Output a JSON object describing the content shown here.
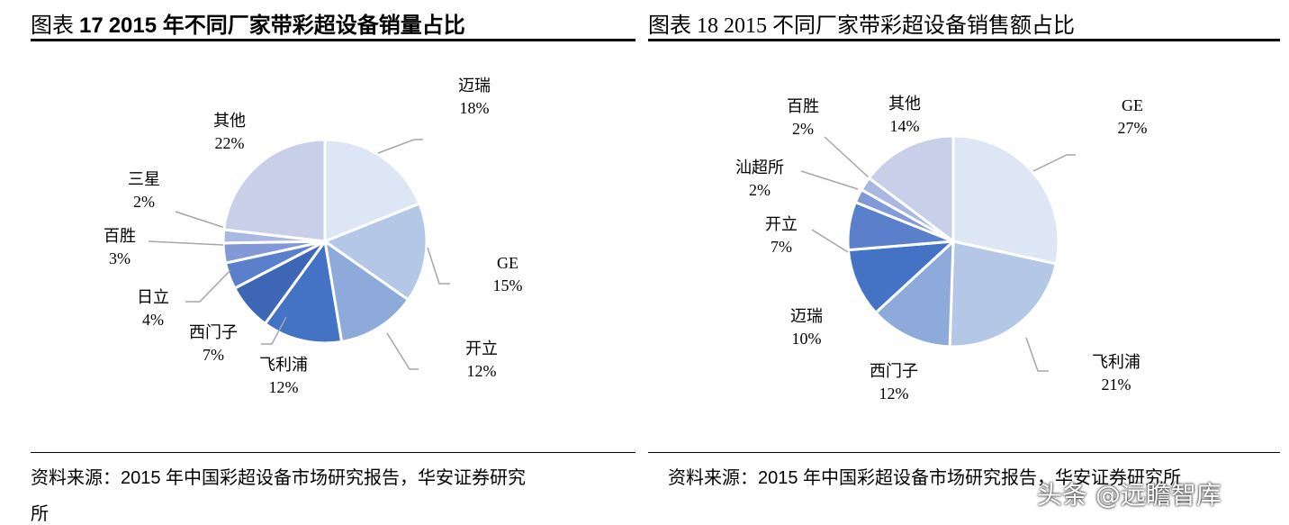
{
  "chart_data": [
    {
      "type": "pie",
      "title_prefix": "图表 ",
      "title_num": "17",
      "title": "2015 年不同厂家带彩超设备销量占比",
      "slices": [
        {
          "label": "迈瑞",
          "value": 18,
          "pct": "18%",
          "color": "#dce6f4"
        },
        {
          "label": "GE",
          "value": 15,
          "pct": "15%",
          "color": "#b4c7e7"
        },
        {
          "label": "开立",
          "value": 12,
          "pct": "12%",
          "color": "#8eaadb"
        },
        {
          "label": "飞利浦",
          "value": 12,
          "pct": "12%",
          "color": "#4472c4"
        },
        {
          "label": "西门子",
          "value": 7,
          "pct": "7%",
          "color": "#3e66b6"
        },
        {
          "label": "日立",
          "value": 4,
          "pct": "4%",
          "color": "#5a7fcb"
        },
        {
          "label": "百胜",
          "value": 3,
          "pct": "3%",
          "color": "#8199d6"
        },
        {
          "label": "三星",
          "value": 2,
          "pct": "2%",
          "color": "#a9b8e2"
        },
        {
          "label": "其他",
          "value": 22,
          "pct": "22%",
          "color": "#c8cfe8"
        }
      ],
      "source": "资料来源：2015 年中国彩超设备市场研究报告，华安证券研究",
      "source2": "所"
    },
    {
      "type": "pie",
      "title_prefix": "图表 ",
      "title_num": "18",
      "title": "2015  不同厂家带彩超设备销售额占比",
      "slices": [
        {
          "label": "GE",
          "value": 27,
          "pct": "27%",
          "color": "#dce6f4"
        },
        {
          "label": "飞利浦",
          "value": 21,
          "pct": "21%",
          "color": "#b4c7e7"
        },
        {
          "label": "西门子",
          "value": 12,
          "pct": "12%",
          "color": "#8eaadb"
        },
        {
          "label": "迈瑞",
          "value": 10,
          "pct": "10%",
          "color": "#4472c4"
        },
        {
          "label": "开立",
          "value": 7,
          "pct": "7%",
          "color": "#5a7fcb"
        },
        {
          "label": "汕超所",
          "value": 2,
          "pct": "2%",
          "color": "#8199d6"
        },
        {
          "label": "百胜",
          "value": 2,
          "pct": "2%",
          "color": "#a9b8e2"
        },
        {
          "label": "其他",
          "value": 14,
          "pct": "14%",
          "color": "#c8cfe8"
        }
      ],
      "source": "资料来源：2015 年中国彩超设备市场研究报告，华安证券研究所"
    }
  ],
  "watermark": "头条 @远瞻智库"
}
